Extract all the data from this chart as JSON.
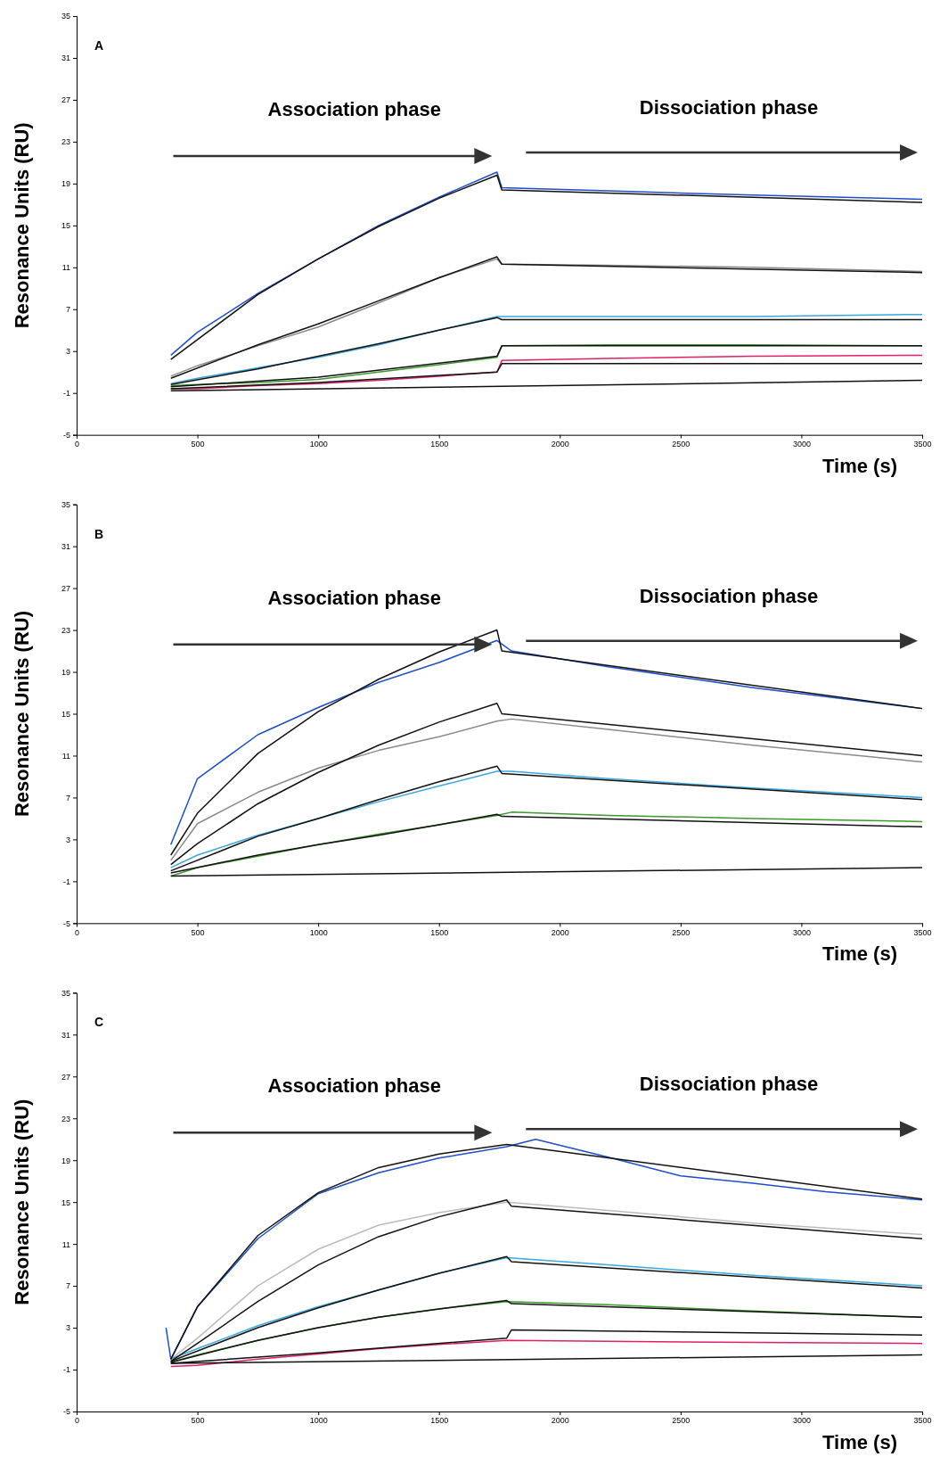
{
  "chart_data": [
    {
      "type": "line",
      "annotations": [
        "A",
        "Association phase",
        "Dissociation phase"
      ],
      "xlabel": "Time (s)",
      "ylabel": "Resonance Units (RU)",
      "xlim": [
        0,
        3500
      ],
      "xticks": [
        0,
        500,
        1000,
        1500,
        2000,
        2500,
        3000,
        3500
      ],
      "ylim": [
        -5,
        35
      ],
      "yticks": [
        -5,
        -1,
        3,
        7,
        11,
        15,
        19,
        23,
        27,
        31,
        35
      ],
      "marker": "none",
      "line_style": "solid",
      "series": [
        {
          "color": "#1e4fc8",
          "x": [
            390,
            500,
            750,
            1000,
            1250,
            1500,
            1740,
            1760,
            2200,
            2800,
            3500
          ],
          "values": [
            2.6,
            4.8,
            8.5,
            11.8,
            15,
            17.7,
            20.1,
            18.6,
            18.3,
            17.9,
            17.5
          ]
        },
        {
          "color": "#8a8a8a",
          "x": [
            390,
            500,
            750,
            1000,
            1250,
            1500,
            1740,
            1760,
            2200,
            2800,
            3500
          ],
          "values": [
            0.6,
            1.6,
            3.5,
            5.3,
            7.6,
            10,
            11.8,
            11.3,
            11.2,
            11,
            10.6
          ]
        },
        {
          "color": "#3aa8e0",
          "x": [
            390,
            500,
            750,
            1000,
            1250,
            1500,
            1740,
            1760,
            2200,
            2800,
            3500
          ],
          "values": [
            -0.1,
            0.4,
            1.4,
            2.4,
            3.6,
            5,
            6.3,
            6.3,
            6.3,
            6.3,
            6.5
          ]
        },
        {
          "color": "#3a9a2a",
          "x": [
            390,
            500,
            750,
            1000,
            1250,
            1500,
            1740,
            1760,
            2200,
            2800,
            3500
          ],
          "values": [
            -0.3,
            -0.2,
            0,
            0.3,
            1,
            1.7,
            2.4,
            3.5,
            3.6,
            3.6,
            3.5
          ]
        },
        {
          "color": "#e0206a",
          "x": [
            390,
            500,
            750,
            1000,
            1250,
            1500,
            1740,
            1760,
            2200,
            2800,
            3500
          ],
          "values": [
            -0.6,
            -0.6,
            -0.3,
            -0.1,
            0.2,
            0.6,
            1,
            2.1,
            2.3,
            2.5,
            2.6
          ]
        },
        {
          "color": "#111111",
          "x": [
            390,
            750,
            1000,
            1250,
            1500,
            1740,
            1760,
            3500
          ],
          "values": [
            2.2,
            8.4,
            11.8,
            14.9,
            17.6,
            19.8,
            18.4,
            17.2
          ]
        },
        {
          "color": "#111111",
          "x": [
            390,
            750,
            1000,
            1250,
            1500,
            1740,
            1760,
            3500
          ],
          "values": [
            0.4,
            3.6,
            5.6,
            7.8,
            10,
            12,
            11.3,
            10.5
          ]
        },
        {
          "color": "#111111",
          "x": [
            390,
            750,
            1000,
            1250,
            1500,
            1740,
            1760,
            3500
          ],
          "values": [
            -0.2,
            1.3,
            2.5,
            3.7,
            5,
            6.2,
            6,
            6
          ]
        },
        {
          "color": "#111111",
          "x": [
            390,
            1000,
            1740,
            1760,
            3500
          ],
          "values": [
            -0.4,
            0.5,
            2.5,
            3.5,
            3.5
          ]
        },
        {
          "color": "#111111",
          "x": [
            390,
            1000,
            1740,
            1760,
            3500
          ],
          "values": [
            -0.6,
            0,
            1,
            1.8,
            1.8
          ]
        },
        {
          "color": "#111111",
          "x": [
            390,
            3500
          ],
          "values": [
            -0.8,
            0.2
          ]
        }
      ]
    },
    {
      "type": "line",
      "annotations": [
        "B",
        "Association phase",
        "Dissociation phase"
      ],
      "xlabel": "Time (s)",
      "ylabel": "Resonance Units (RU)",
      "xlim": [
        0,
        3500
      ],
      "xticks": [
        0,
        500,
        1000,
        1500,
        2000,
        2500,
        3000,
        3500
      ],
      "ylim": [
        -5,
        35
      ],
      "yticks": [
        -5,
        -1,
        3,
        7,
        11,
        15,
        19,
        23,
        27,
        31,
        35
      ],
      "marker": "none",
      "line_style": "solid",
      "series": [
        {
          "color": "#1e4fc8",
          "x": [
            390,
            500,
            750,
            1000,
            1250,
            1500,
            1740,
            1800,
            2200,
            2800,
            3500
          ],
          "values": [
            2.5,
            8.8,
            13,
            15.6,
            18,
            19.9,
            22,
            21,
            19.5,
            17.5,
            15.5
          ]
        },
        {
          "color": "#8a8a8a",
          "x": [
            390,
            500,
            750,
            1000,
            1250,
            1500,
            1740,
            1800,
            2200,
            2800,
            3500
          ],
          "values": [
            1,
            4.5,
            7.5,
            9.8,
            11.5,
            12.8,
            14.3,
            14.5,
            13.5,
            12,
            10.4
          ]
        },
        {
          "color": "#3aa8e0",
          "x": [
            390,
            500,
            750,
            1000,
            1250,
            1500,
            1740,
            1800,
            2200,
            2800,
            3500
          ],
          "values": [
            0.3,
            1.5,
            3.4,
            5,
            6.6,
            8.1,
            9.5,
            9.5,
            8.8,
            7.9,
            7
          ]
        },
        {
          "color": "#3a9a2a",
          "x": [
            390,
            500,
            750,
            1000,
            1250,
            1500,
            1740,
            1800,
            2200,
            2800,
            3500
          ],
          "values": [
            -0.5,
            0.3,
            1.4,
            2.5,
            3.5,
            4.4,
            5.3,
            5.6,
            5.3,
            5,
            4.7
          ]
        },
        {
          "color": "#111111",
          "x": [
            390,
            500,
            750,
            1000,
            1250,
            1500,
            1740,
            1760,
            3500
          ],
          "values": [
            1.5,
            5.5,
            11.2,
            15.2,
            18.3,
            20.9,
            23,
            21,
            15.5
          ]
        },
        {
          "color": "#111111",
          "x": [
            390,
            500,
            750,
            1000,
            1250,
            1500,
            1740,
            1760,
            3500
          ],
          "values": [
            0.6,
            2.6,
            6.4,
            9.4,
            12,
            14.2,
            16,
            15,
            11
          ]
        },
        {
          "color": "#111111",
          "x": [
            390,
            750,
            1000,
            1250,
            1500,
            1740,
            1760,
            3500
          ],
          "values": [
            0,
            3.3,
            5,
            6.8,
            8.5,
            10,
            9.3,
            6.8
          ]
        },
        {
          "color": "#111111",
          "x": [
            390,
            750,
            1000,
            1250,
            1500,
            1740,
            1760,
            3500
          ],
          "values": [
            -0.2,
            1.5,
            2.5,
            3.4,
            4.4,
            5.4,
            5.2,
            4.2
          ]
        },
        {
          "color": "#111111",
          "x": [
            390,
            3500
          ],
          "values": [
            -0.5,
            0.3
          ]
        }
      ]
    },
    {
      "type": "line",
      "annotations": [
        "C",
        "Association phase",
        "Dissociation phase"
      ],
      "xlabel": "Time (s)",
      "ylabel": "Resonance Units (RU)",
      "xlim": [
        0,
        3500
      ],
      "xticks": [
        0,
        500,
        1000,
        1500,
        2000,
        2500,
        3000,
        3500
      ],
      "ylim": [
        -5,
        35
      ],
      "yticks": [
        -5,
        -1,
        3,
        7,
        11,
        15,
        19,
        23,
        27,
        31,
        35
      ],
      "marker": "none",
      "line_style": "solid",
      "series": [
        {
          "color": "#1e4fc8",
          "x": [
            370,
            390,
            500,
            750,
            1000,
            1250,
            1500,
            1780,
            1900,
            2200,
            2500,
            2800,
            3100,
            3500
          ],
          "values": [
            3,
            0,
            5,
            11.5,
            15.8,
            17.8,
            19.2,
            20.3,
            21,
            19.3,
            17.5,
            16.8,
            16,
            15.2
          ]
        },
        {
          "color": "#bcbcbc",
          "x": [
            390,
            500,
            750,
            1000,
            1250,
            1500,
            1780,
            2200,
            2800,
            3500
          ],
          "values": [
            0,
            2,
            7,
            10.5,
            12.8,
            14,
            15,
            14.2,
            13,
            11.9
          ]
        },
        {
          "color": "#3aa8e0",
          "x": [
            390,
            500,
            750,
            1000,
            1250,
            1500,
            1780,
            2200,
            2800,
            3500
          ],
          "values": [
            0,
            1,
            3.2,
            5,
            6.6,
            8.2,
            9.7,
            9,
            8,
            7
          ]
        },
        {
          "color": "#3a9a2a",
          "x": [
            390,
            500,
            750,
            1000,
            1250,
            1500,
            1780,
            2200,
            2800,
            3500
          ],
          "values": [
            -0.3,
            0.4,
            1.8,
            3,
            4,
            4.8,
            5.5,
            5.2,
            4.6,
            4
          ]
        },
        {
          "color": "#e0206a",
          "x": [
            390,
            500,
            750,
            1000,
            1250,
            1500,
            1780,
            2200,
            2800,
            3500
          ],
          "values": [
            -0.7,
            -0.6,
            0,
            0.5,
            1,
            1.4,
            1.8,
            1.7,
            1.6,
            1.5
          ]
        },
        {
          "color": "#111111",
          "x": [
            390,
            500,
            750,
            1000,
            1250,
            1500,
            1780,
            3500
          ],
          "values": [
            0,
            5,
            11.8,
            15.9,
            18.3,
            19.6,
            20.5,
            15.3
          ]
        },
        {
          "color": "#111111",
          "x": [
            390,
            500,
            750,
            1000,
            1250,
            1500,
            1780,
            1800,
            3500
          ],
          "values": [
            -0.2,
            1.5,
            5.5,
            9,
            11.7,
            13.6,
            15.2,
            14.6,
            11.5
          ]
        },
        {
          "color": "#111111",
          "x": [
            390,
            750,
            1000,
            1250,
            1500,
            1780,
            1800,
            3500
          ],
          "values": [
            -0.2,
            3,
            4.9,
            6.6,
            8.2,
            9.8,
            9.3,
            6.8
          ]
        },
        {
          "color": "#111111",
          "x": [
            390,
            750,
            1000,
            1250,
            1500,
            1780,
            1800,
            3500
          ],
          "values": [
            -0.3,
            1.8,
            3,
            4,
            4.8,
            5.6,
            5.3,
            4
          ]
        },
        {
          "color": "#111111",
          "x": [
            390,
            1000,
            1780,
            1800,
            3500
          ],
          "values": [
            -0.4,
            0.6,
            2,
            2.8,
            2.3
          ]
        },
        {
          "color": "#111111",
          "x": [
            390,
            3500
          ],
          "values": [
            -0.4,
            0.4
          ]
        }
      ]
    }
  ]
}
